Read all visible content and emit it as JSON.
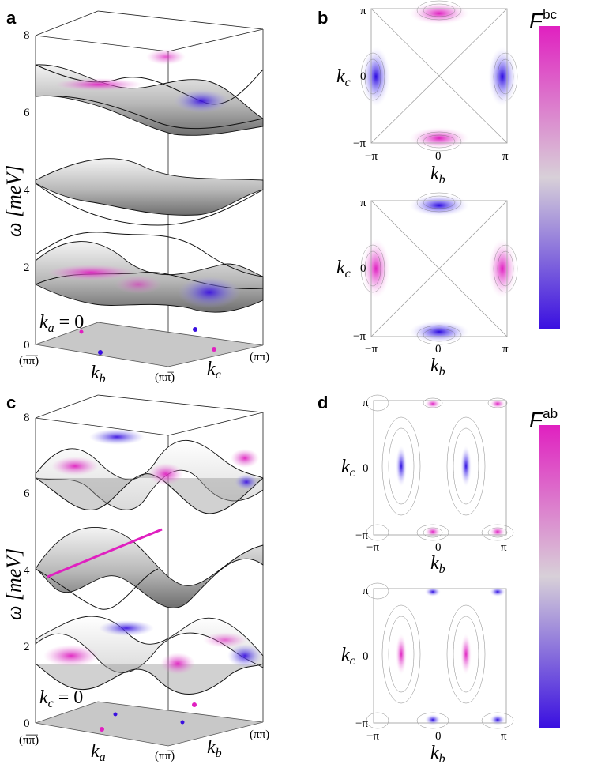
{
  "panels": {
    "a": {
      "letter": "a",
      "ylabel": "ω [meV]",
      "yticks": [
        "0",
        "2",
        "4",
        "6",
        "8"
      ],
      "fixed_label": "k_a = 0",
      "fixed_var": "k",
      "fixed_sub": "a",
      "fixed_eq": " = 0",
      "corner_left": "(π̅π̅)",
      "corner_mid": "(ππ̅)",
      "corner_right": "(ππ)",
      "axis1_var": "k",
      "axis1_sub": "b",
      "axis2_var": "k",
      "axis2_sub": "c"
    },
    "b": {
      "letter": "b",
      "top_map": {
        "y_top": "π",
        "y_mid": "0",
        "y_bot": "−π",
        "x_left": "−π",
        "x_mid": "0",
        "x_right": "π",
        "xlabel_var": "k",
        "xlabel_sub": "b",
        "ylabel_var": "k",
        "ylabel_sub": "c"
      },
      "bottom_map": {
        "y_top": "π",
        "y_mid": "0",
        "y_bot": "−π",
        "x_left": "−π",
        "x_mid": "0",
        "x_right": "π",
        "xlabel_var": "k",
        "xlabel_sub": "b",
        "ylabel_var": "k",
        "ylabel_sub": "c"
      },
      "colorbar": {
        "label": "F",
        "sup": "bc",
        "top_color": "#e020c0",
        "mid_color": "#d8d0d8",
        "bottom_color": "#3a10e0"
      }
    },
    "c": {
      "letter": "c",
      "ylabel": "ω [meV]",
      "yticks": [
        "0",
        "2",
        "4",
        "6",
        "8"
      ],
      "fixed_var": "k",
      "fixed_sub": "c",
      "fixed_eq": " = 0",
      "corner_left": "(π̅π̅)",
      "corner_mid": "(ππ̅)",
      "corner_right": "(ππ)",
      "axis1_var": "k",
      "axis1_sub": "a",
      "axis2_var": "k",
      "axis2_sub": "b"
    },
    "d": {
      "letter": "d",
      "top_map": {
        "y_top": "π",
        "y_mid": "0",
        "y_bot": "−π",
        "x_left": "−π",
        "x_mid": "0",
        "x_right": "π",
        "xlabel_var": "k",
        "xlabel_sub": "b",
        "ylabel_var": "k",
        "ylabel_sub": "c"
      },
      "bottom_map": {
        "y_top": "π",
        "y_mid": "0",
        "y_bot": "−π",
        "x_left": "−π",
        "x_mid": "0",
        "x_right": "π",
        "xlabel_var": "k",
        "xlabel_sub": "b",
        "ylabel_var": "k",
        "ylabel_sub": "c"
      },
      "colorbar": {
        "label": "F",
        "sup": "ab",
        "top_color": "#e020c0",
        "mid_color": "#d8d0d8",
        "bottom_color": "#3a10e0"
      }
    }
  },
  "colors": {
    "magenta": "#e020c0",
    "blue": "#3a10e0",
    "gray_surface": "#8a8a8a",
    "floor": "#c8c8c8"
  }
}
